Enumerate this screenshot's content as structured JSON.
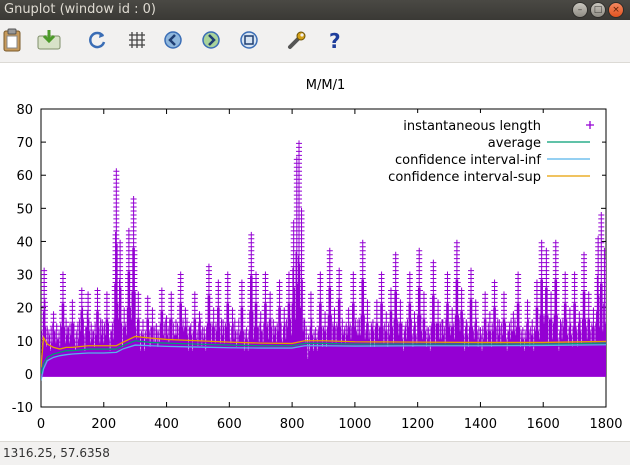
{
  "window": {
    "title": "Gnuplot (window id : 0)"
  },
  "toolbar": {
    "buttons": [
      {
        "name": "copy-to-clipboard-icon"
      },
      {
        "name": "print-icon"
      },
      {
        "name": "replot-icon"
      },
      {
        "name": "toggle-grid-icon"
      },
      {
        "name": "zoom-previous-icon"
      },
      {
        "name": "zoom-next-icon"
      },
      {
        "name": "autoscale-icon"
      },
      {
        "name": "preferences-icon"
      },
      {
        "name": "help-icon"
      }
    ]
  },
  "status": {
    "coords": "1316.25,  57.6358"
  },
  "chart_data": {
    "type": "scatter",
    "title": "M/M/1",
    "xlabel": "",
    "ylabel": "",
    "xlim": [
      0,
      1800
    ],
    "ylim": [
      -10,
      80
    ],
    "xticks": [
      "0",
      "200",
      "400",
      "600",
      "800",
      "1000",
      "1200",
      "1400",
      "1600",
      "1800"
    ],
    "yticks": [
      "-10",
      "0",
      "10",
      "20",
      "30",
      "40",
      "50",
      "60",
      "70",
      "80"
    ],
    "grid": false,
    "legend_position": "top-right",
    "series": [
      {
        "name": "instantaneous length",
        "style": "points",
        "color": "#9400d3",
        "peaks": [
          [
            0,
            5
          ],
          [
            10,
            32
          ],
          [
            25,
            12
          ],
          [
            40,
            18
          ],
          [
            55,
            10
          ],
          [
            70,
            30
          ],
          [
            85,
            14
          ],
          [
            100,
            22
          ],
          [
            115,
            8
          ],
          [
            130,
            26
          ],
          [
            150,
            24
          ],
          [
            165,
            12
          ],
          [
            180,
            26
          ],
          [
            195,
            16
          ],
          [
            210,
            24
          ],
          [
            225,
            12
          ],
          [
            240,
            62
          ],
          [
            252,
            40
          ],
          [
            265,
            20
          ],
          [
            280,
            44
          ],
          [
            295,
            54
          ],
          [
            310,
            24
          ],
          [
            325,
            16
          ],
          [
            340,
            23
          ],
          [
            355,
            20
          ],
          [
            370,
            12
          ],
          [
            385,
            26
          ],
          [
            400,
            17
          ],
          [
            415,
            24
          ],
          [
            430,
            16
          ],
          [
            445,
            30
          ],
          [
            460,
            20
          ],
          [
            475,
            14
          ],
          [
            490,
            24
          ],
          [
            505,
            18
          ],
          [
            520,
            14
          ],
          [
            535,
            33
          ],
          [
            550,
            20
          ],
          [
            565,
            28
          ],
          [
            580,
            16
          ],
          [
            595,
            30
          ],
          [
            610,
            20
          ],
          [
            625,
            12
          ],
          [
            640,
            28
          ],
          [
            655,
            14
          ],
          [
            670,
            43
          ],
          [
            685,
            30
          ],
          [
            700,
            18
          ],
          [
            715,
            30
          ],
          [
            730,
            24
          ],
          [
            745,
            14
          ],
          [
            760,
            28
          ],
          [
            775,
            20
          ],
          [
            790,
            30
          ],
          [
            805,
            46
          ],
          [
            815,
            65
          ],
          [
            822,
            70
          ],
          [
            830,
            50
          ],
          [
            840,
            16
          ],
          [
            850,
            4
          ],
          [
            860,
            24
          ],
          [
            875,
            14
          ],
          [
            890,
            30
          ],
          [
            905,
            18
          ],
          [
            920,
            38
          ],
          [
            935,
            20
          ],
          [
            950,
            32
          ],
          [
            965,
            12
          ],
          [
            980,
            20
          ],
          [
            995,
            30
          ],
          [
            1010,
            16
          ],
          [
            1025,
            40
          ],
          [
            1040,
            22
          ],
          [
            1055,
            14
          ],
          [
            1070,
            22
          ],
          [
            1085,
            31
          ],
          [
            1100,
            18
          ],
          [
            1115,
            26
          ],
          [
            1130,
            36
          ],
          [
            1145,
            22
          ],
          [
            1160,
            14
          ],
          [
            1175,
            30
          ],
          [
            1190,
            18
          ],
          [
            1205,
            38
          ],
          [
            1220,
            24
          ],
          [
            1235,
            14
          ],
          [
            1250,
            34
          ],
          [
            1265,
            22
          ],
          [
            1280,
            16
          ],
          [
            1295,
            30
          ],
          [
            1310,
            20
          ],
          [
            1325,
            40
          ],
          [
            1340,
            26
          ],
          [
            1355,
            16
          ],
          [
            1370,
            32
          ],
          [
            1385,
            22
          ],
          [
            1400,
            14
          ],
          [
            1415,
            24
          ],
          [
            1430,
            18
          ],
          [
            1445,
            28
          ],
          [
            1460,
            16
          ],
          [
            1475,
            24
          ],
          [
            1490,
            12
          ],
          [
            1505,
            18
          ],
          [
            1520,
            30
          ],
          [
            1535,
            14
          ],
          [
            1550,
            22
          ],
          [
            1565,
            16
          ],
          [
            1580,
            28
          ],
          [
            1595,
            40
          ],
          [
            1610,
            38
          ],
          [
            1625,
            24
          ],
          [
            1640,
            40
          ],
          [
            1655,
            16
          ],
          [
            1670,
            30
          ],
          [
            1685,
            20
          ],
          [
            1700,
            30
          ],
          [
            1715,
            18
          ],
          [
            1730,
            36
          ],
          [
            1745,
            24
          ],
          [
            1760,
            20
          ],
          [
            1775,
            42
          ],
          [
            1785,
            49
          ],
          [
            1795,
            38
          ],
          [
            1800,
            34
          ]
        ]
      },
      {
        "name": "average",
        "style": "line",
        "color": "#009e73",
        "x": [
          0,
          8,
          20,
          40,
          60,
          80,
          100,
          150,
          200,
          240,
          260,
          300,
          350,
          400,
          500,
          600,
          700,
          800,
          840,
          900,
          1000,
          1200,
          1400,
          1600,
          1800
        ],
        "y": [
          0,
          3,
          5,
          6,
          6.5,
          7,
          7,
          7.5,
          7.5,
          7.5,
          8.5,
          10,
          9.5,
          9.3,
          9,
          8.7,
          8.5,
          8.5,
          9.2,
          9.2,
          9,
          9,
          9,
          9,
          9.3
        ]
      },
      {
        "name": "confidence interval-inf",
        "style": "line",
        "color": "#56b4e9",
        "x": [
          0,
          8,
          20,
          40,
          60,
          80,
          100,
          150,
          200,
          240,
          260,
          300,
          350,
          400,
          500,
          600,
          700,
          800,
          840,
          900,
          1000,
          1200,
          1400,
          1600,
          1800
        ],
        "y": [
          -2,
          1.5,
          4,
          5,
          5.5,
          5.8,
          6,
          6.3,
          6.3,
          6.5,
          7.5,
          8.7,
          8.5,
          8.3,
          8.1,
          7.9,
          7.8,
          7.8,
          8.5,
          8.5,
          8.4,
          8.5,
          8.5,
          8.6,
          8.8
        ]
      },
      {
        "name": "confidence interval-sup",
        "style": "line",
        "color": "#e69f00",
        "x": [
          0,
          8,
          20,
          40,
          60,
          80,
          100,
          150,
          200,
          240,
          260,
          300,
          350,
          400,
          500,
          600,
          700,
          800,
          840,
          900,
          1000,
          1200,
          1400,
          1600,
          1800
        ],
        "y": [
          2,
          11,
          9,
          8,
          7.5,
          8,
          8,
          8.5,
          8.5,
          8.5,
          9.5,
          11.3,
          10.8,
          10.4,
          10,
          9.6,
          9.3,
          9.2,
          10,
          10,
          9.7,
          9.6,
          9.5,
          9.5,
          9.8
        ]
      }
    ]
  }
}
